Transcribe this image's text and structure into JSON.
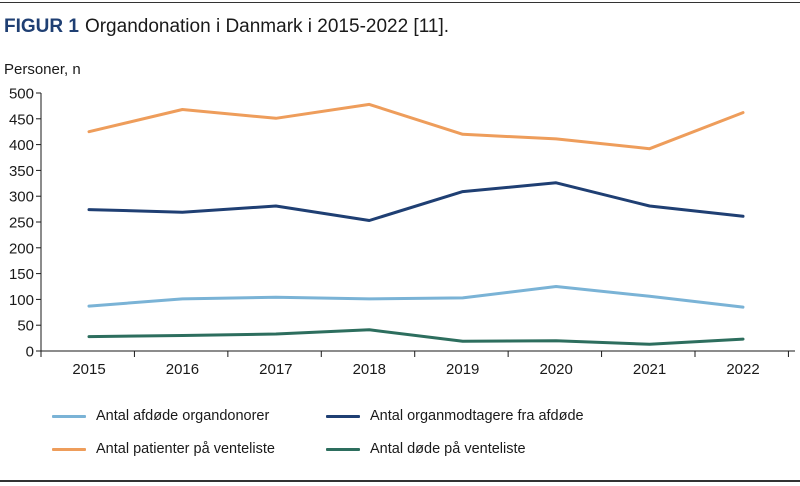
{
  "figure": {
    "label": "FIGUR 1",
    "title": "Organdonation i Danmark i 2015-2022 [11]."
  },
  "chart_data": {
    "type": "line",
    "title": "FIGUR 1 Organdonation i Danmark i 2015-2022 [11].",
    "ylabel": "Personer, n",
    "xlabel": "",
    "x": [
      "2015",
      "2016",
      "2017",
      "2018",
      "2019",
      "2020",
      "2021",
      "2022"
    ],
    "ylim": [
      0,
      500
    ],
    "yticks": [
      0,
      50,
      100,
      150,
      200,
      250,
      300,
      350,
      400,
      450,
      500
    ],
    "grid": false,
    "legend_position": "bottom",
    "series": [
      {
        "name": "Antal afdøde organdonorer",
        "color": "#7ab3d6",
        "values": [
          87,
          101,
          104,
          101,
          103,
          125,
          106,
          85
        ]
      },
      {
        "name": "Antal organmodtagere fra afdøde",
        "color": "#1f3f73",
        "values": [
          274,
          269,
          281,
          253,
          309,
          326,
          281,
          261
        ]
      },
      {
        "name": "Antal patienter på venteliste",
        "color": "#ee9d5b",
        "values": [
          425,
          468,
          451,
          478,
          420,
          411,
          392,
          462
        ]
      },
      {
        "name": "Antal døde på venteliste",
        "color": "#2d6e5e",
        "values": [
          28,
          30,
          33,
          41,
          19,
          20,
          13,
          23
        ]
      }
    ]
  }
}
